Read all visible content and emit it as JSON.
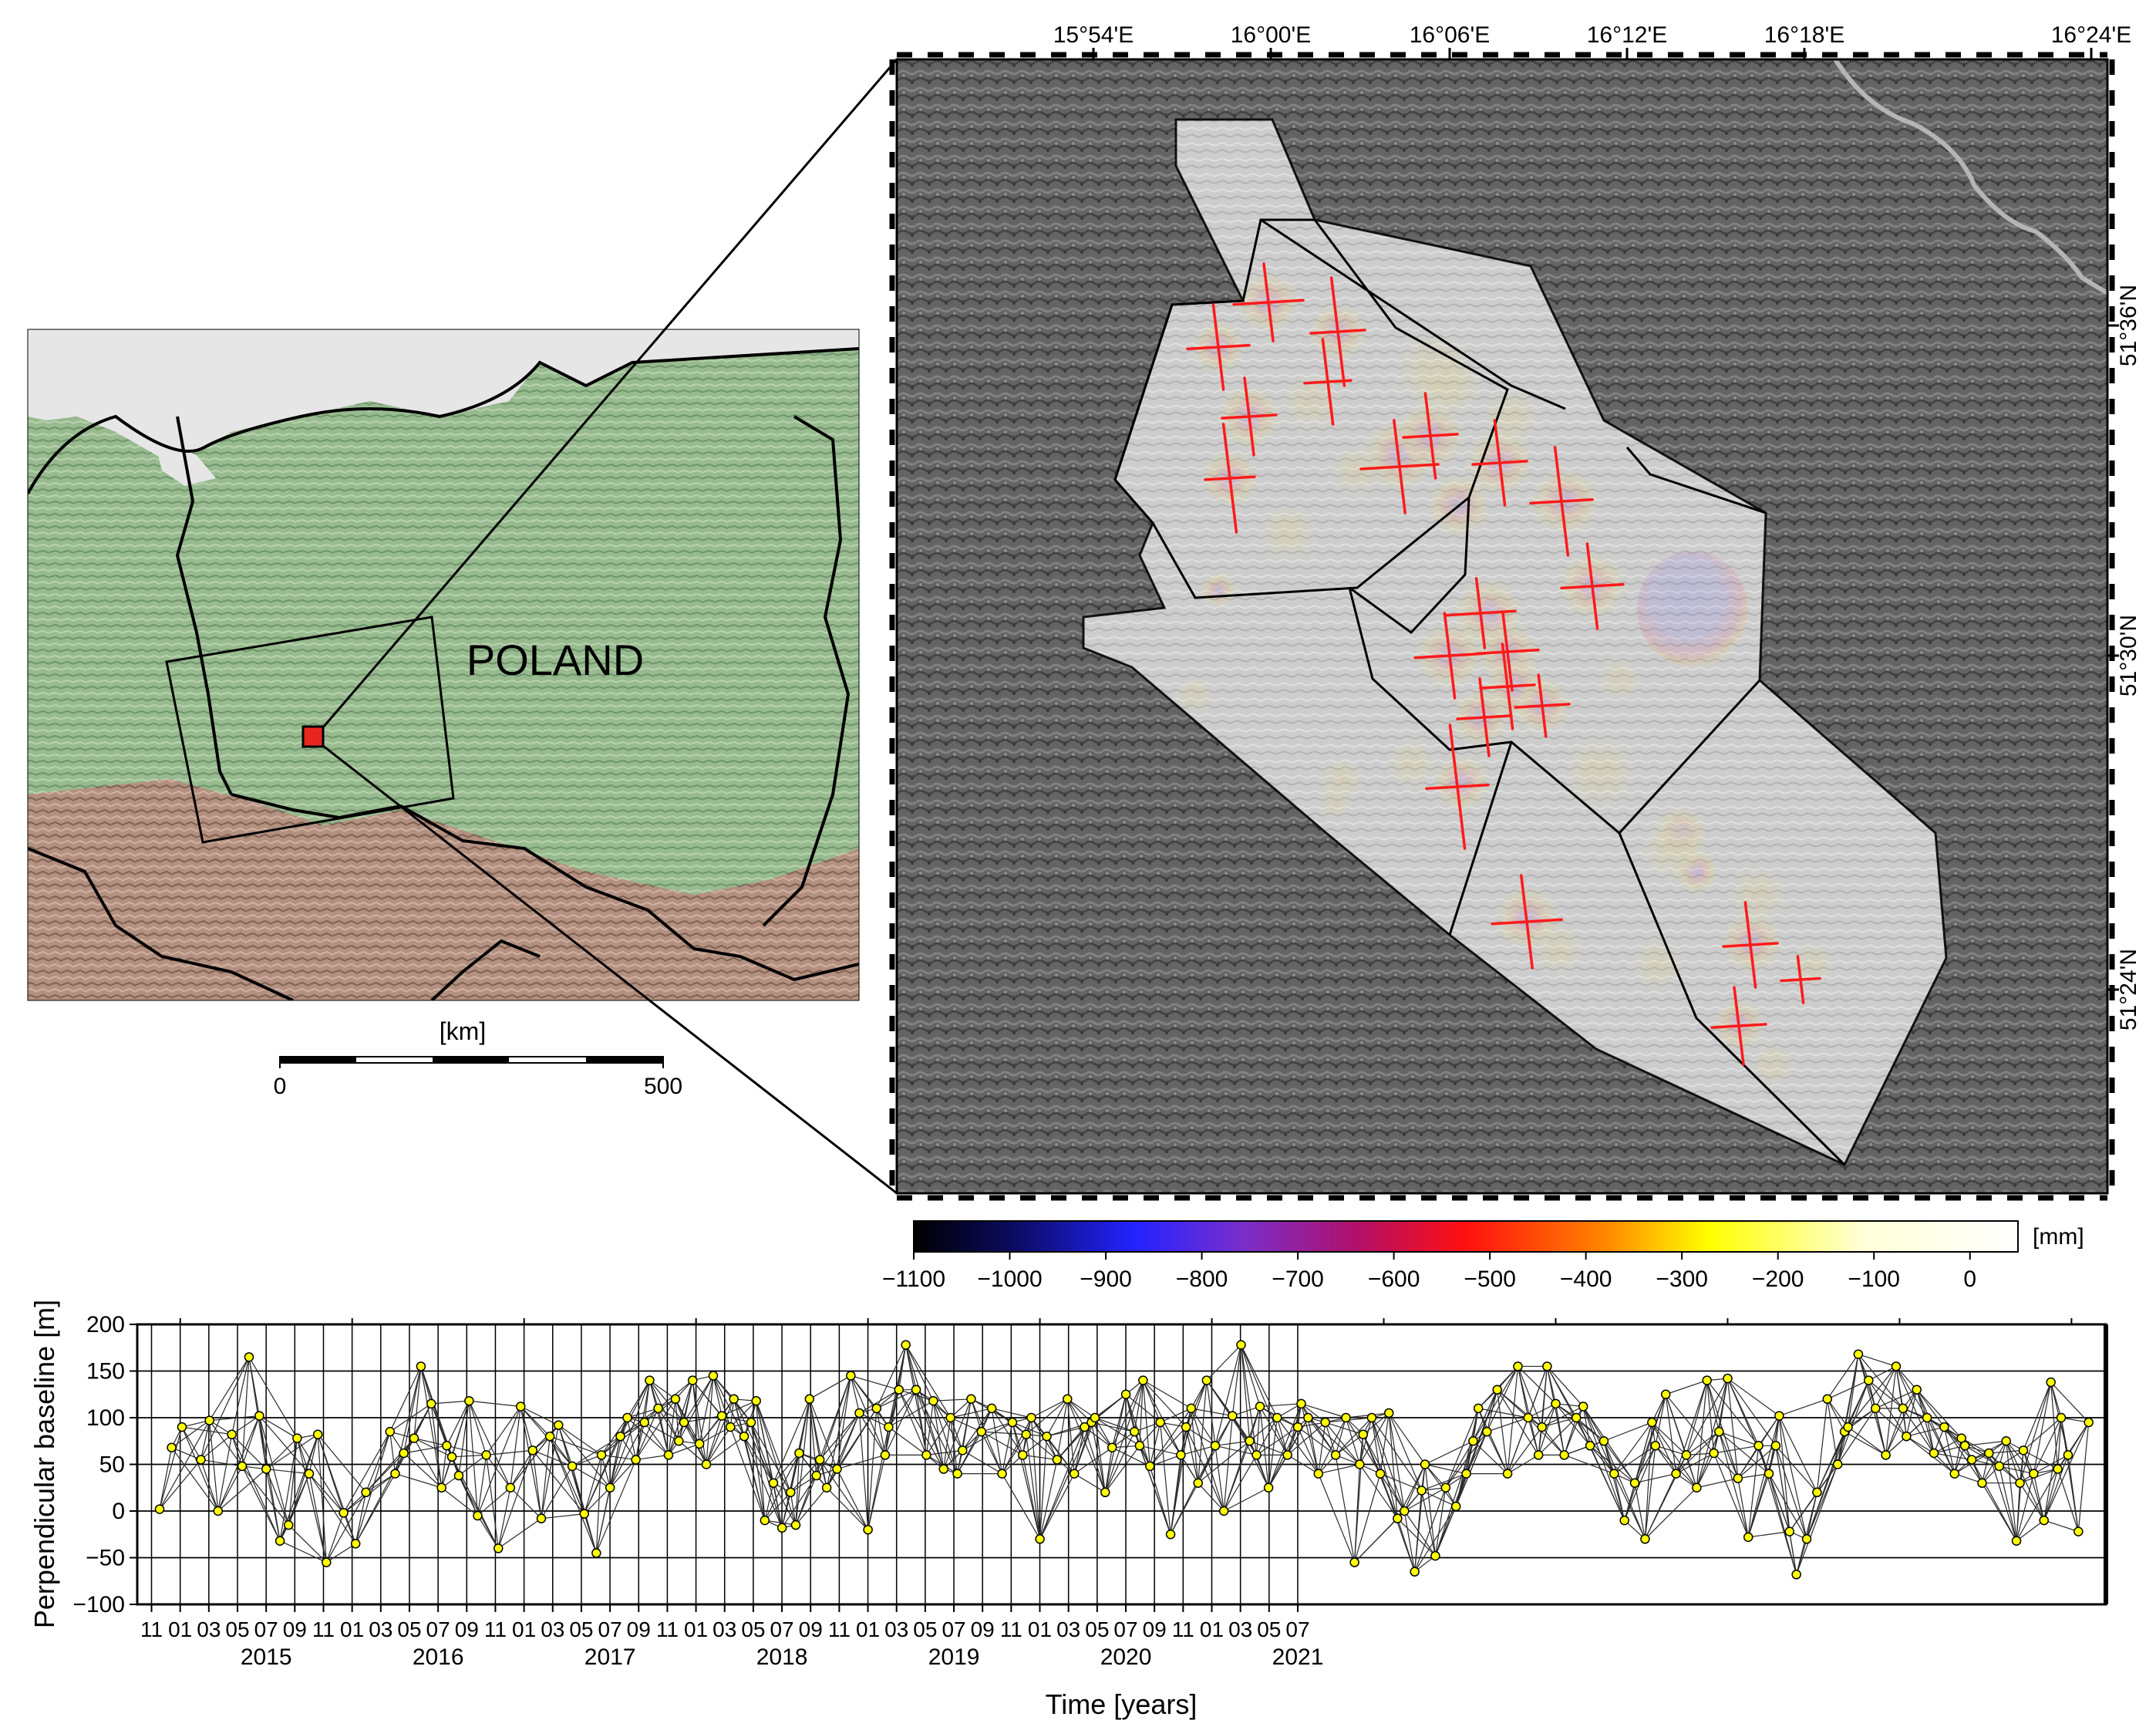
{
  "inset_map": {
    "country_label": "POLAND",
    "scale_unit": "[km]",
    "scale_ticks": [
      "0",
      "500"
    ]
  },
  "main_map": {
    "top_lon_labels": [
      "15°54'E",
      "16°00'E",
      "16°06'E",
      "16°12'E",
      "16°18'E",
      "16°24'E"
    ],
    "right_lat_labels": [
      "51°36'N",
      "51°30'N",
      "51°24'N"
    ]
  },
  "colorbar": {
    "unit": "[mm]",
    "ticks": [
      -1100,
      -1000,
      -900,
      -800,
      -700,
      -600,
      -500,
      -400,
      -300,
      -200,
      -100,
      0
    ],
    "stops": [
      "#000000",
      "#0b0b60",
      "#2323ff",
      "#7a2ec9",
      "#b0106a",
      "#ff1010",
      "#ff8000",
      "#ffff00",
      "#ffffd8",
      "#ffffff"
    ]
  },
  "chart_data": {
    "type": "scatter",
    "xlabel": "Time [years]",
    "ylabel": "Perpendicular baseline [m]",
    "ylim": [
      -100,
      200
    ],
    "yticks": [
      -100,
      -50,
      0,
      50,
      100,
      150,
      200
    ],
    "month_ticks": [
      "11",
      "01",
      "03",
      "05",
      "07",
      "09",
      "11",
      "01",
      "03",
      "05",
      "07",
      "09",
      "11",
      "01",
      "03",
      "05",
      "07",
      "09",
      "11",
      "01",
      "03",
      "05",
      "07",
      "09",
      "11",
      "01",
      "03",
      "05",
      "07",
      "09",
      "11",
      "01",
      "03",
      "05",
      "07",
      "09",
      "11",
      "01",
      "03",
      "05",
      "07"
    ],
    "year_labels": [
      "2015",
      "2016",
      "2017",
      "2018",
      "2019",
      "2020",
      "2021"
    ],
    "point_color": "#ffff00",
    "points": [
      [
        2014.88,
        2
      ],
      [
        2014.95,
        68
      ],
      [
        2015.01,
        90
      ],
      [
        2015.12,
        55
      ],
      [
        2015.17,
        97
      ],
      [
        2015.22,
        0
      ],
      [
        2015.3,
        82
      ],
      [
        2015.36,
        48
      ],
      [
        2015.4,
        165
      ],
      [
        2015.46,
        102
      ],
      [
        2015.5,
        45
      ],
      [
        2015.58,
        -32
      ],
      [
        2015.63,
        -15
      ],
      [
        2015.68,
        78
      ],
      [
        2015.75,
        40
      ],
      [
        2015.8,
        82
      ],
      [
        2015.85,
        -55
      ],
      [
        2015.95,
        -2
      ],
      [
        2016.02,
        -35
      ],
      [
        2016.08,
        20
      ],
      [
        2016.22,
        85
      ],
      [
        2016.3,
        62
      ],
      [
        2016.36,
        78
      ],
      [
        2016.4,
        155
      ],
      [
        2016.46,
        115
      ],
      [
        2016.52,
        25
      ],
      [
        2016.58,
        58
      ],
      [
        2016.62,
        38
      ],
      [
        2016.68,
        118
      ],
      [
        2016.73,
        -5
      ],
      [
        2016.78,
        60
      ],
      [
        2016.85,
        -40
      ],
      [
        2016.92,
        25
      ],
      [
        2016.98,
        112
      ],
      [
        2017.05,
        65
      ],
      [
        2017.1,
        -8
      ],
      [
        2017.2,
        92
      ],
      [
        2017.28,
        48
      ],
      [
        2017.35,
        -3
      ],
      [
        2017.42,
        -45
      ],
      [
        2017.5,
        25
      ],
      [
        2017.56,
        80
      ],
      [
        2017.6,
        100
      ],
      [
        2017.65,
        55
      ],
      [
        2017.7,
        95
      ],
      [
        2017.73,
        140
      ],
      [
        2017.78,
        110
      ],
      [
        2017.84,
        60
      ],
      [
        2017.88,
        120
      ],
      [
        2017.93,
        95
      ],
      [
        2017.98,
        140
      ],
      [
        2018.02,
        72
      ],
      [
        2018.06,
        50
      ],
      [
        2018.1,
        145
      ],
      [
        2018.15,
        102
      ],
      [
        2018.22,
        120
      ],
      [
        2018.28,
        80
      ],
      [
        2018.35,
        118
      ],
      [
        2018.4,
        -10
      ],
      [
        2018.45,
        30
      ],
      [
        2018.5,
        -18
      ],
      [
        2018.55,
        20
      ],
      [
        2018.6,
        62
      ],
      [
        2018.66,
        120
      ],
      [
        2018.7,
        38
      ],
      [
        2018.76,
        25
      ],
      [
        2018.82,
        45
      ],
      [
        2018.9,
        145
      ],
      [
        2018.95,
        105
      ],
      [
        2019.0,
        -20
      ],
      [
        2019.05,
        110
      ],
      [
        2019.1,
        60
      ],
      [
        2019.18,
        130
      ],
      [
        2019.22,
        178
      ],
      [
        2019.28,
        130
      ],
      [
        2019.34,
        60
      ],
      [
        2019.38,
        118
      ],
      [
        2019.44,
        45
      ],
      [
        2019.48,
        100
      ],
      [
        2019.55,
        65
      ],
      [
        2019.6,
        120
      ],
      [
        2019.66,
        85
      ],
      [
        2019.72,
        110
      ],
      [
        2019.78,
        40
      ],
      [
        2019.84,
        95
      ],
      [
        2019.9,
        60
      ],
      [
        2019.95,
        100
      ],
      [
        2020.0,
        -30
      ],
      [
        2020.04,
        80
      ],
      [
        2020.1,
        55
      ],
      [
        2020.16,
        120
      ],
      [
        2020.2,
        40
      ],
      [
        2020.26,
        90
      ],
      [
        2020.32,
        100
      ],
      [
        2020.38,
        20
      ],
      [
        2020.42,
        68
      ],
      [
        2020.5,
        125
      ],
      [
        2020.55,
        85
      ],
      [
        2020.6,
        140
      ],
      [
        2020.64,
        48
      ],
      [
        2020.7,
        95
      ],
      [
        2020.76,
        -25
      ],
      [
        2020.82,
        60
      ],
      [
        2020.88,
        110
      ],
      [
        2020.92,
        30
      ],
      [
        2020.97,
        140
      ],
      [
        2021.02,
        70
      ],
      [
        2021.07,
        0
      ],
      [
        2021.12,
        102
      ],
      [
        2021.17,
        178
      ],
      [
        2021.22,
        75
      ],
      [
        2021.28,
        112
      ],
      [
        2021.33,
        25
      ],
      [
        2021.38,
        100
      ],
      [
        2021.44,
        60
      ],
      [
        2021.5,
        90
      ],
      [
        2021.56,
        100
      ],
      [
        2021.62,
        40
      ],
      [
        2021.66,
        95
      ],
      [
        2021.72,
        60
      ],
      [
        2021.78,
        100
      ],
      [
        2021.83,
        -55
      ],
      [
        2021.88,
        82
      ],
      [
        2021.93,
        100
      ],
      [
        2021.98,
        40
      ],
      [
        2022.03,
        105
      ],
      [
        2022.08,
        -8
      ],
      [
        2022.12,
        0
      ],
      [
        2022.18,
        -65
      ],
      [
        2022.24,
        50
      ],
      [
        2022.3,
        -48
      ],
      [
        2022.36,
        25
      ],
      [
        2022.42,
        5
      ],
      [
        2022.48,
        40
      ],
      [
        2022.55,
        110
      ],
      [
        2022.6,
        85
      ],
      [
        2022.66,
        130
      ],
      [
        2022.72,
        40
      ],
      [
        2022.78,
        155
      ],
      [
        2022.84,
        100
      ],
      [
        2022.9,
        60
      ],
      [
        2022.95,
        155
      ],
      [
        2023.0,
        115
      ],
      [
        2023.05,
        60
      ],
      [
        2023.12,
        100
      ],
      [
        2023.2,
        70
      ],
      [
        2023.28,
        75
      ],
      [
        2023.34,
        40
      ],
      [
        2023.4,
        -10
      ],
      [
        2023.46,
        30
      ],
      [
        2023.52,
        -30
      ],
      [
        2023.58,
        70
      ],
      [
        2023.64,
        125
      ],
      [
        2023.7,
        40
      ],
      [
        2023.76,
        60
      ],
      [
        2023.82,
        25
      ],
      [
        2023.88,
        140
      ],
      [
        2023.95,
        85
      ],
      [
        2024.0,
        142
      ],
      [
        2024.06,
        35
      ],
      [
        2024.12,
        -28
      ],
      [
        2024.18,
        70
      ],
      [
        2024.24,
        40
      ],
      [
        2024.3,
        102
      ],
      [
        2024.36,
        -22
      ],
      [
        2024.4,
        -68
      ],
      [
        2024.46,
        -30
      ],
      [
        2024.52,
        20
      ],
      [
        2024.58,
        120
      ],
      [
        2024.64,
        50
      ],
      [
        2024.7,
        90
      ],
      [
        2024.76,
        168
      ],
      [
        2024.82,
        140
      ],
      [
        2024.86,
        110
      ],
      [
        2024.92,
        60
      ],
      [
        2024.98,
        155
      ],
      [
        2025.04,
        80
      ],
      [
        2025.1,
        130
      ],
      [
        2025.16,
        100
      ],
      [
        2025.2,
        62
      ],
      [
        2025.26,
        90
      ],
      [
        2025.32,
        40
      ],
      [
        2025.38,
        70
      ],
      [
        2025.42,
        55
      ],
      [
        2025.48,
        30
      ],
      [
        2025.52,
        62
      ],
      [
        2025.58,
        48
      ],
      [
        2025.62,
        75
      ],
      [
        2025.68,
        -32
      ],
      [
        2025.72,
        65
      ],
      [
        2025.78,
        40
      ],
      [
        2025.84,
        -10
      ],
      [
        2025.88,
        138
      ],
      [
        2025.94,
        100
      ],
      [
        2025.98,
        60
      ],
      [
        2026.04,
        -22
      ],
      [
        2026.1,
        95
      ],
      [
        2016.25,
        40
      ],
      [
        2016.55,
        70
      ],
      [
        2017.15,
        80
      ],
      [
        2017.45,
        60
      ],
      [
        2017.9,
        75
      ],
      [
        2018.2,
        90
      ],
      [
        2018.32,
        95
      ],
      [
        2018.58,
        -15
      ],
      [
        2018.72,
        55
      ],
      [
        2019.12,
        90
      ],
      [
        2019.52,
        40
      ],
      [
        2019.92,
        82
      ],
      [
        2020.3,
        95
      ],
      [
        2020.58,
        70
      ],
      [
        2020.85,
        90
      ],
      [
        2021.26,
        60
      ],
      [
        2021.52,
        115
      ],
      [
        2021.86,
        50
      ],
      [
        2022.22,
        22
      ],
      [
        2022.52,
        75
      ],
      [
        2022.92,
        90
      ],
      [
        2023.16,
        112
      ],
      [
        2023.56,
        95
      ],
      [
        2023.92,
        62
      ],
      [
        2024.28,
        70
      ],
      [
        2024.68,
        85
      ],
      [
        2025.02,
        110
      ],
      [
        2025.36,
        78
      ],
      [
        2025.7,
        30
      ],
      [
        2025.92,
        45
      ]
    ]
  }
}
